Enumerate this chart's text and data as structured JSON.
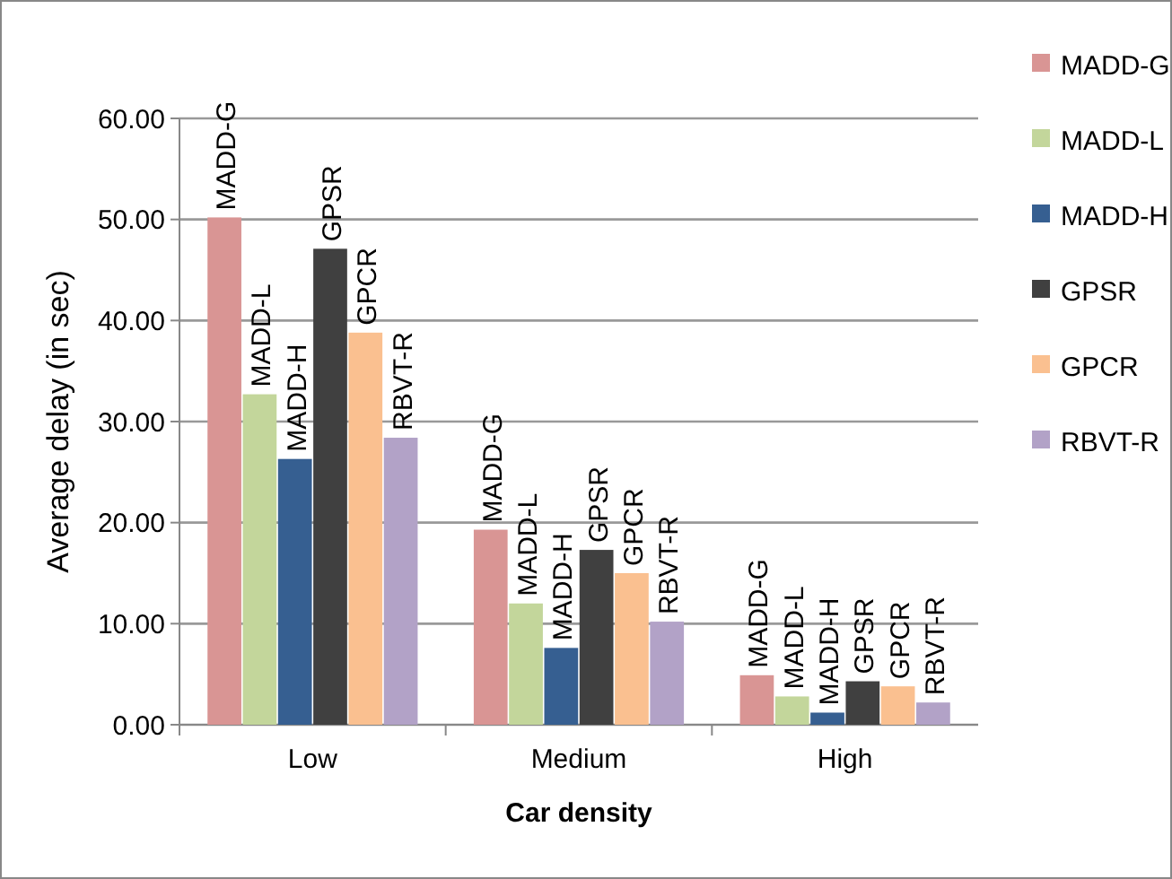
{
  "chart_data": {
    "type": "bar",
    "xlabel": "Car density",
    "ylabel": "Average delay (in sec)",
    "categories": [
      "Low",
      "Medium",
      "High"
    ],
    "series": [
      {
        "name": "MADD-G",
        "color": "#d99594",
        "values": [
          50.2,
          19.3,
          4.9
        ]
      },
      {
        "name": "MADD-L",
        "color": "#c3d69b",
        "values": [
          32.7,
          12.0,
          2.8
        ]
      },
      {
        "name": "MADD-H",
        "color": "#365f91",
        "values": [
          26.3,
          7.6,
          1.2
        ]
      },
      {
        "name": "GPSR",
        "color": "#404040",
        "values": [
          47.1,
          17.3,
          4.3
        ]
      },
      {
        "name": "GPCR",
        "color": "#fac090",
        "values": [
          38.8,
          15.0,
          3.8
        ]
      },
      {
        "name": "RBVT-R",
        "color": "#b2a2c7",
        "values": [
          28.4,
          10.2,
          2.2
        ]
      }
    ],
    "ylim": [
      0,
      60
    ],
    "yticks": [
      {
        "value": 0,
        "label": "0.00"
      },
      {
        "value": 10,
        "label": "10.00"
      },
      {
        "value": 20,
        "label": "20.00"
      },
      {
        "value": 30,
        "label": "30.00"
      },
      {
        "value": 40,
        "label": "40.00"
      },
      {
        "value": 50,
        "label": "50.00"
      },
      {
        "value": 60,
        "label": "60.00"
      }
    ],
    "grid": "y",
    "legend": "right"
  }
}
